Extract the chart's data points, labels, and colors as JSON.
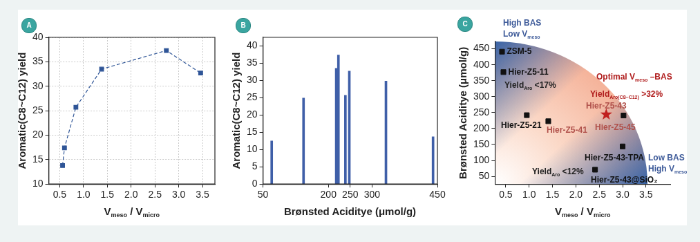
{
  "chart_data": [
    {
      "type": "line",
      "title": "A",
      "xlabel": "V$_{meso}$ / V$_{micro}$",
      "ylabel": "Aromatic(C8~C12) yield",
      "x": [
        0.56,
        0.6,
        0.84,
        1.38,
        2.74,
        3.46
      ],
      "values": [
        13.8,
        17.4,
        25.7,
        33.5,
        37.3,
        32.7
      ],
      "color": "#2f5597",
      "marker": "square",
      "line_style": "dashed",
      "xlim": [
        0.27,
        3.76
      ],
      "xticks": [
        0.5,
        {
          "value": 1,
          "label": "1.0"
        },
        1.5,
        {
          "value": 2,
          "label": "2.0"
        },
        2.5,
        {
          "value": 3,
          "label": "3.0"
        },
        3.5
      ],
      "ylim": [
        10,
        40
      ],
      "yticks": [
        10,
        15,
        20,
        25,
        30,
        35,
        40
      ],
      "grid": true
    },
    {
      "type": "bar",
      "title": "B",
      "xlabel": "Brønsted Aciditye (μmol/g)",
      "ylabel": "Aromatic(C8~C12) yield",
      "x": [
        70,
        143,
        218,
        223,
        239,
        248,
        332,
        440
      ],
      "values": [
        12.5,
        24.9,
        33.5,
        37.4,
        25.7,
        32.7,
        29.8,
        13.7
      ],
      "color": "#3f5fa8",
      "xlim": [
        50,
        450
      ],
      "xticks": [
        50,
        200,
        250,
        300,
        450
      ],
      "ylim": [
        0,
        42.5
      ],
      "yticks": [
        0,
        5,
        10,
        15,
        20,
        25,
        30,
        35,
        40
      ]
    },
    {
      "type": "scatter",
      "title": "C",
      "xlabel": "V$_{meso}$ / V$_{micro}$",
      "ylabel": "Brønsted Aciditye (μmol/g)",
      "series": [
        {
          "color": "#111111",
          "marker": "square",
          "x": [
            0.42,
            0.45,
            0.95,
            1.41,
            3.02,
            3.0,
            2.41
          ],
          "values": [
            441,
            377,
            242,
            223,
            241,
            144,
            71
          ]
        },
        {
          "color": "#c0201f",
          "marker": "star",
          "x": [
            2.65
          ],
          "values": [
            244
          ]
        }
      ],
      "xlim": [
        0.27,
        4.02
      ],
      "xticks": [
        0.5,
        {
          "value": 1,
          "label": "1.0"
        },
        1.5,
        {
          "value": 2,
          "label": "2.0"
        },
        2.5,
        {
          "value": 3,
          "label": "3.0"
        },
        3.5
      ],
      "ylim": [
        26,
        473
      ],
      "yticks": [
        50,
        100,
        150,
        200,
        250,
        300,
        350,
        400,
        450
      ],
      "annotations": [
        {
          "text": "ZSM-5",
          "x": 0.42,
          "y": 441
        },
        {
          "text": "Hier-Z5-11",
          "x": 0.45,
          "y": 377
        },
        {
          "text": "Hier-Z5-21",
          "x": 0.95,
          "y": 242
        },
        {
          "text": "Hier-Z5-41",
          "x": 1.41,
          "y": 223
        },
        {
          "text": "Hier-Z5-43",
          "x": 2.65,
          "y": 244
        },
        {
          "text": "Hier-Z5-45",
          "x": 3.02,
          "y": 241
        },
        {
          "text": "Hier-Z5-43-TPA",
          "x": 3.0,
          "y": 144
        },
        {
          "text": "Hier-Z5-43@SiO₂",
          "x": 2.41,
          "y": 71
        },
        "High BAS\nLow V$_{meso}$",
        "Yield$_{Aro}$ <17%",
        "Optimal V$_{meso}$ –BAS",
        "Yield$_{Aro(C8~C12)}$ >32%",
        "Yield$_{Aro}$ <12%",
        "Low BAS\nHigh V$_{meso}$"
      ]
    }
  ]
}
